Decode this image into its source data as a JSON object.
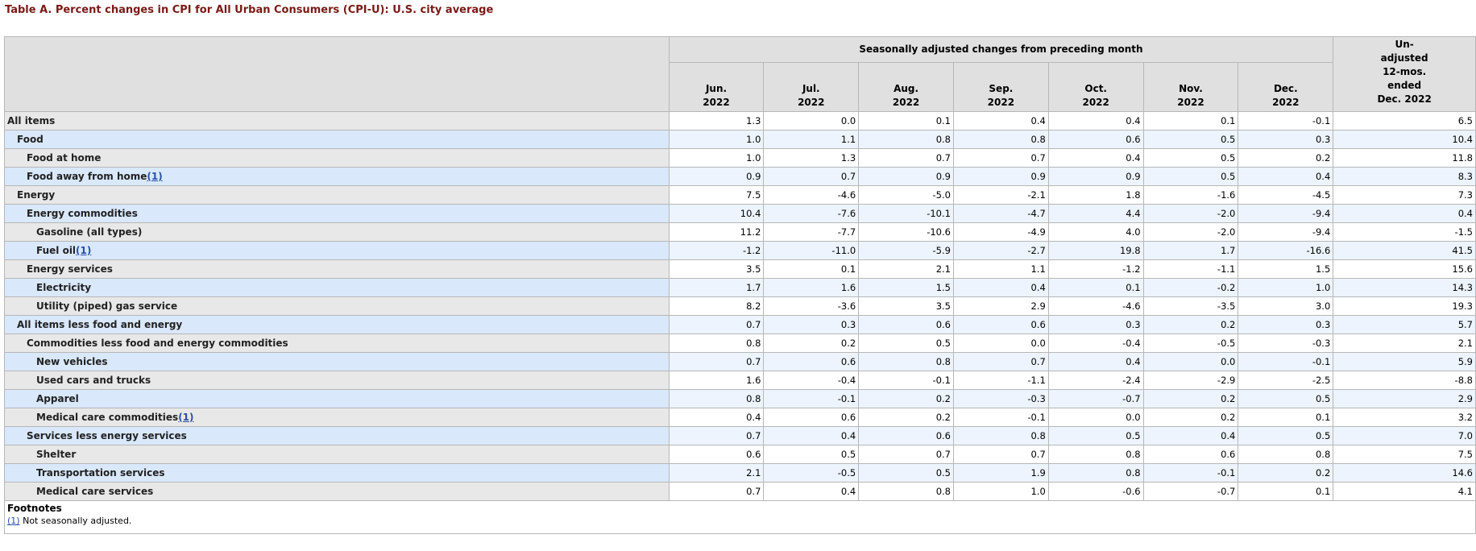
{
  "caption": "Table A. Percent changes in CPI for All Urban Consumers (CPI-U): U.S. city average",
  "header": {
    "group_label": "Seasonally adjusted changes from preceding month",
    "months": [
      {
        "m": "Jun.",
        "y": "2022"
      },
      {
        "m": "Jul.",
        "y": "2022"
      },
      {
        "m": "Aug.",
        "y": "2022"
      },
      {
        "m": "Sep.",
        "y": "2022"
      },
      {
        "m": "Oct.",
        "y": "2022"
      },
      {
        "m": "Nov.",
        "y": "2022"
      },
      {
        "m": "Dec.",
        "y": "2022"
      }
    ],
    "unadjusted": [
      "Un-",
      "adjusted",
      "12-mos.",
      "ended",
      "Dec. 2022"
    ]
  },
  "rows": [
    {
      "label": "All items",
      "level": 0,
      "fn": "",
      "values": [
        "1.3",
        "0.0",
        "0.1",
        "0.4",
        "0.4",
        "0.1",
        "-0.1",
        "6.5"
      ]
    },
    {
      "label": "Food",
      "level": 1,
      "fn": "",
      "values": [
        "1.0",
        "1.1",
        "0.8",
        "0.8",
        "0.6",
        "0.5",
        "0.3",
        "10.4"
      ]
    },
    {
      "label": "Food at home",
      "level": 2,
      "fn": "",
      "values": [
        "1.0",
        "1.3",
        "0.7",
        "0.7",
        "0.4",
        "0.5",
        "0.2",
        "11.8"
      ]
    },
    {
      "label": "Food away from home",
      "level": 2,
      "fn": "(1)",
      "values": [
        "0.9",
        "0.7",
        "0.9",
        "0.9",
        "0.9",
        "0.5",
        "0.4",
        "8.3"
      ]
    },
    {
      "label": "Energy",
      "level": 1,
      "fn": "",
      "values": [
        "7.5",
        "-4.6",
        "-5.0",
        "-2.1",
        "1.8",
        "-1.6",
        "-4.5",
        "7.3"
      ]
    },
    {
      "label": "Energy commodities",
      "level": 2,
      "fn": "",
      "values": [
        "10.4",
        "-7.6",
        "-10.1",
        "-4.7",
        "4.4",
        "-2.0",
        "-9.4",
        "0.4"
      ]
    },
    {
      "label": "Gasoline (all types)",
      "level": 3,
      "fn": "",
      "values": [
        "11.2",
        "-7.7",
        "-10.6",
        "-4.9",
        "4.0",
        "-2.0",
        "-9.4",
        "-1.5"
      ]
    },
    {
      "label": "Fuel oil",
      "level": 3,
      "fn": "(1)",
      "values": [
        "-1.2",
        "-11.0",
        "-5.9",
        "-2.7",
        "19.8",
        "1.7",
        "-16.6",
        "41.5"
      ]
    },
    {
      "label": "Energy services",
      "level": 2,
      "fn": "",
      "values": [
        "3.5",
        "0.1",
        "2.1",
        "1.1",
        "-1.2",
        "-1.1",
        "1.5",
        "15.6"
      ]
    },
    {
      "label": "Electricity",
      "level": 3,
      "fn": "",
      "values": [
        "1.7",
        "1.6",
        "1.5",
        "0.4",
        "0.1",
        "-0.2",
        "1.0",
        "14.3"
      ]
    },
    {
      "label": "Utility (piped) gas service",
      "level": 3,
      "fn": "",
      "values": [
        "8.2",
        "-3.6",
        "3.5",
        "2.9",
        "-4.6",
        "-3.5",
        "3.0",
        "19.3"
      ]
    },
    {
      "label": "All items less food and energy",
      "level": 1,
      "fn": "",
      "values": [
        "0.7",
        "0.3",
        "0.6",
        "0.6",
        "0.3",
        "0.2",
        "0.3",
        "5.7"
      ]
    },
    {
      "label": "Commodities less food and energy commodities",
      "level": 2,
      "fn": "",
      "values": [
        "0.8",
        "0.2",
        "0.5",
        "0.0",
        "-0.4",
        "-0.5",
        "-0.3",
        "2.1"
      ]
    },
    {
      "label": "New vehicles",
      "level": 3,
      "fn": "",
      "values": [
        "0.7",
        "0.6",
        "0.8",
        "0.7",
        "0.4",
        "0.0",
        "-0.1",
        "5.9"
      ]
    },
    {
      "label": "Used cars and trucks",
      "level": 3,
      "fn": "",
      "values": [
        "1.6",
        "-0.4",
        "-0.1",
        "-1.1",
        "-2.4",
        "-2.9",
        "-2.5",
        "-8.8"
      ]
    },
    {
      "label": "Apparel",
      "level": 3,
      "fn": "",
      "values": [
        "0.8",
        "-0.1",
        "0.2",
        "-0.3",
        "-0.7",
        "0.2",
        "0.5",
        "2.9"
      ]
    },
    {
      "label": "Medical care commodities",
      "level": 3,
      "fn": "(1)",
      "values": [
        "0.4",
        "0.6",
        "0.2",
        "-0.1",
        "0.0",
        "0.2",
        "0.1",
        "3.2"
      ]
    },
    {
      "label": "Services less energy services",
      "level": 2,
      "fn": "",
      "values": [
        "0.7",
        "0.4",
        "0.6",
        "0.8",
        "0.5",
        "0.4",
        "0.5",
        "7.0"
      ]
    },
    {
      "label": "Shelter",
      "level": 3,
      "fn": "",
      "values": [
        "0.6",
        "0.5",
        "0.7",
        "0.7",
        "0.8",
        "0.6",
        "0.8",
        "7.5"
      ]
    },
    {
      "label": "Transportation services",
      "level": 3,
      "fn": "",
      "values": [
        "2.1",
        "-0.5",
        "0.5",
        "1.9",
        "0.8",
        "-0.1",
        "0.2",
        "14.6"
      ]
    },
    {
      "label": "Medical care services",
      "level": 3,
      "fn": "",
      "values": [
        "0.7",
        "0.4",
        "0.8",
        "1.0",
        "-0.6",
        "-0.7",
        "0.1",
        "4.1"
      ]
    }
  ],
  "footnotes": {
    "title": "Footnotes",
    "items": [
      {
        "ref": "(1)",
        "text": " Not seasonally adjusted."
      }
    ]
  }
}
